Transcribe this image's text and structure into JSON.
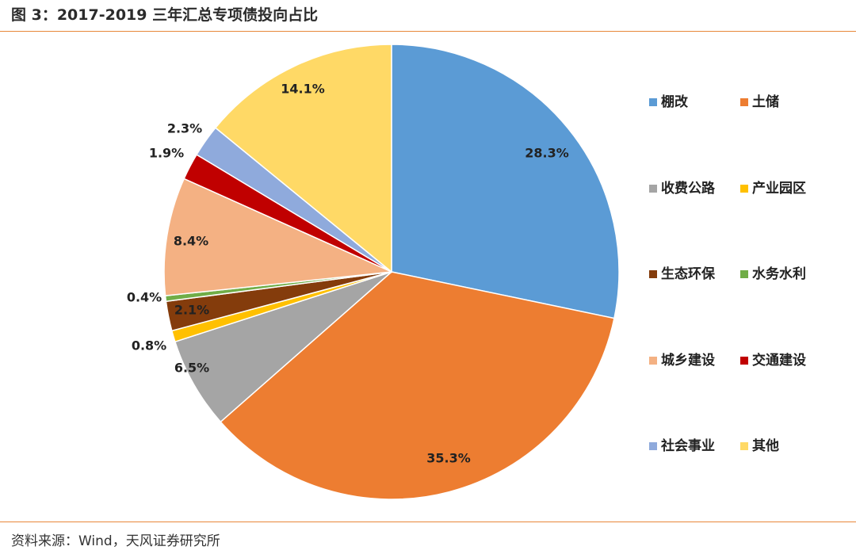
{
  "header": {
    "title": "图 3：2017-2019 三年汇总专项债投向占比"
  },
  "footer": {
    "source": "资料来源：Wind，天风证券研究所"
  },
  "chart_data": {
    "type": "pie",
    "title": "图 3：2017-2019 三年汇总专项债投向占比",
    "legend_position": "right",
    "slices": [
      {
        "name": "棚改",
        "value": 28.3,
        "label": "28.3%",
        "color": "#5b9bd5"
      },
      {
        "name": "土储",
        "value": 35.3,
        "label": "35.3%",
        "color": "#ed7d31"
      },
      {
        "name": "收费公路",
        "value": 6.5,
        "label": "6.5%",
        "color": "#a5a5a5"
      },
      {
        "name": "产业园区",
        "value": 0.8,
        "label": "0.8%",
        "color": "#ffc000"
      },
      {
        "name": "生态环保",
        "value": 2.1,
        "label": "2.1%",
        "color": "#843c0c"
      },
      {
        "name": "水务水利",
        "value": 0.4,
        "label": "0.4%",
        "color": "#70ad47"
      },
      {
        "name": "城乡建设",
        "value": 8.4,
        "label": "8.4%",
        "color": "#f4b183"
      },
      {
        "name": "交通建设",
        "value": 1.9,
        "label": "1.9%",
        "color": "#c00000"
      },
      {
        "name": "社会事业",
        "value": 2.3,
        "label": "2.3%",
        "color": "#8faadc"
      },
      {
        "name": "其他",
        "value": 14.1,
        "label": "14.1%",
        "color": "#ffd966"
      }
    ]
  }
}
